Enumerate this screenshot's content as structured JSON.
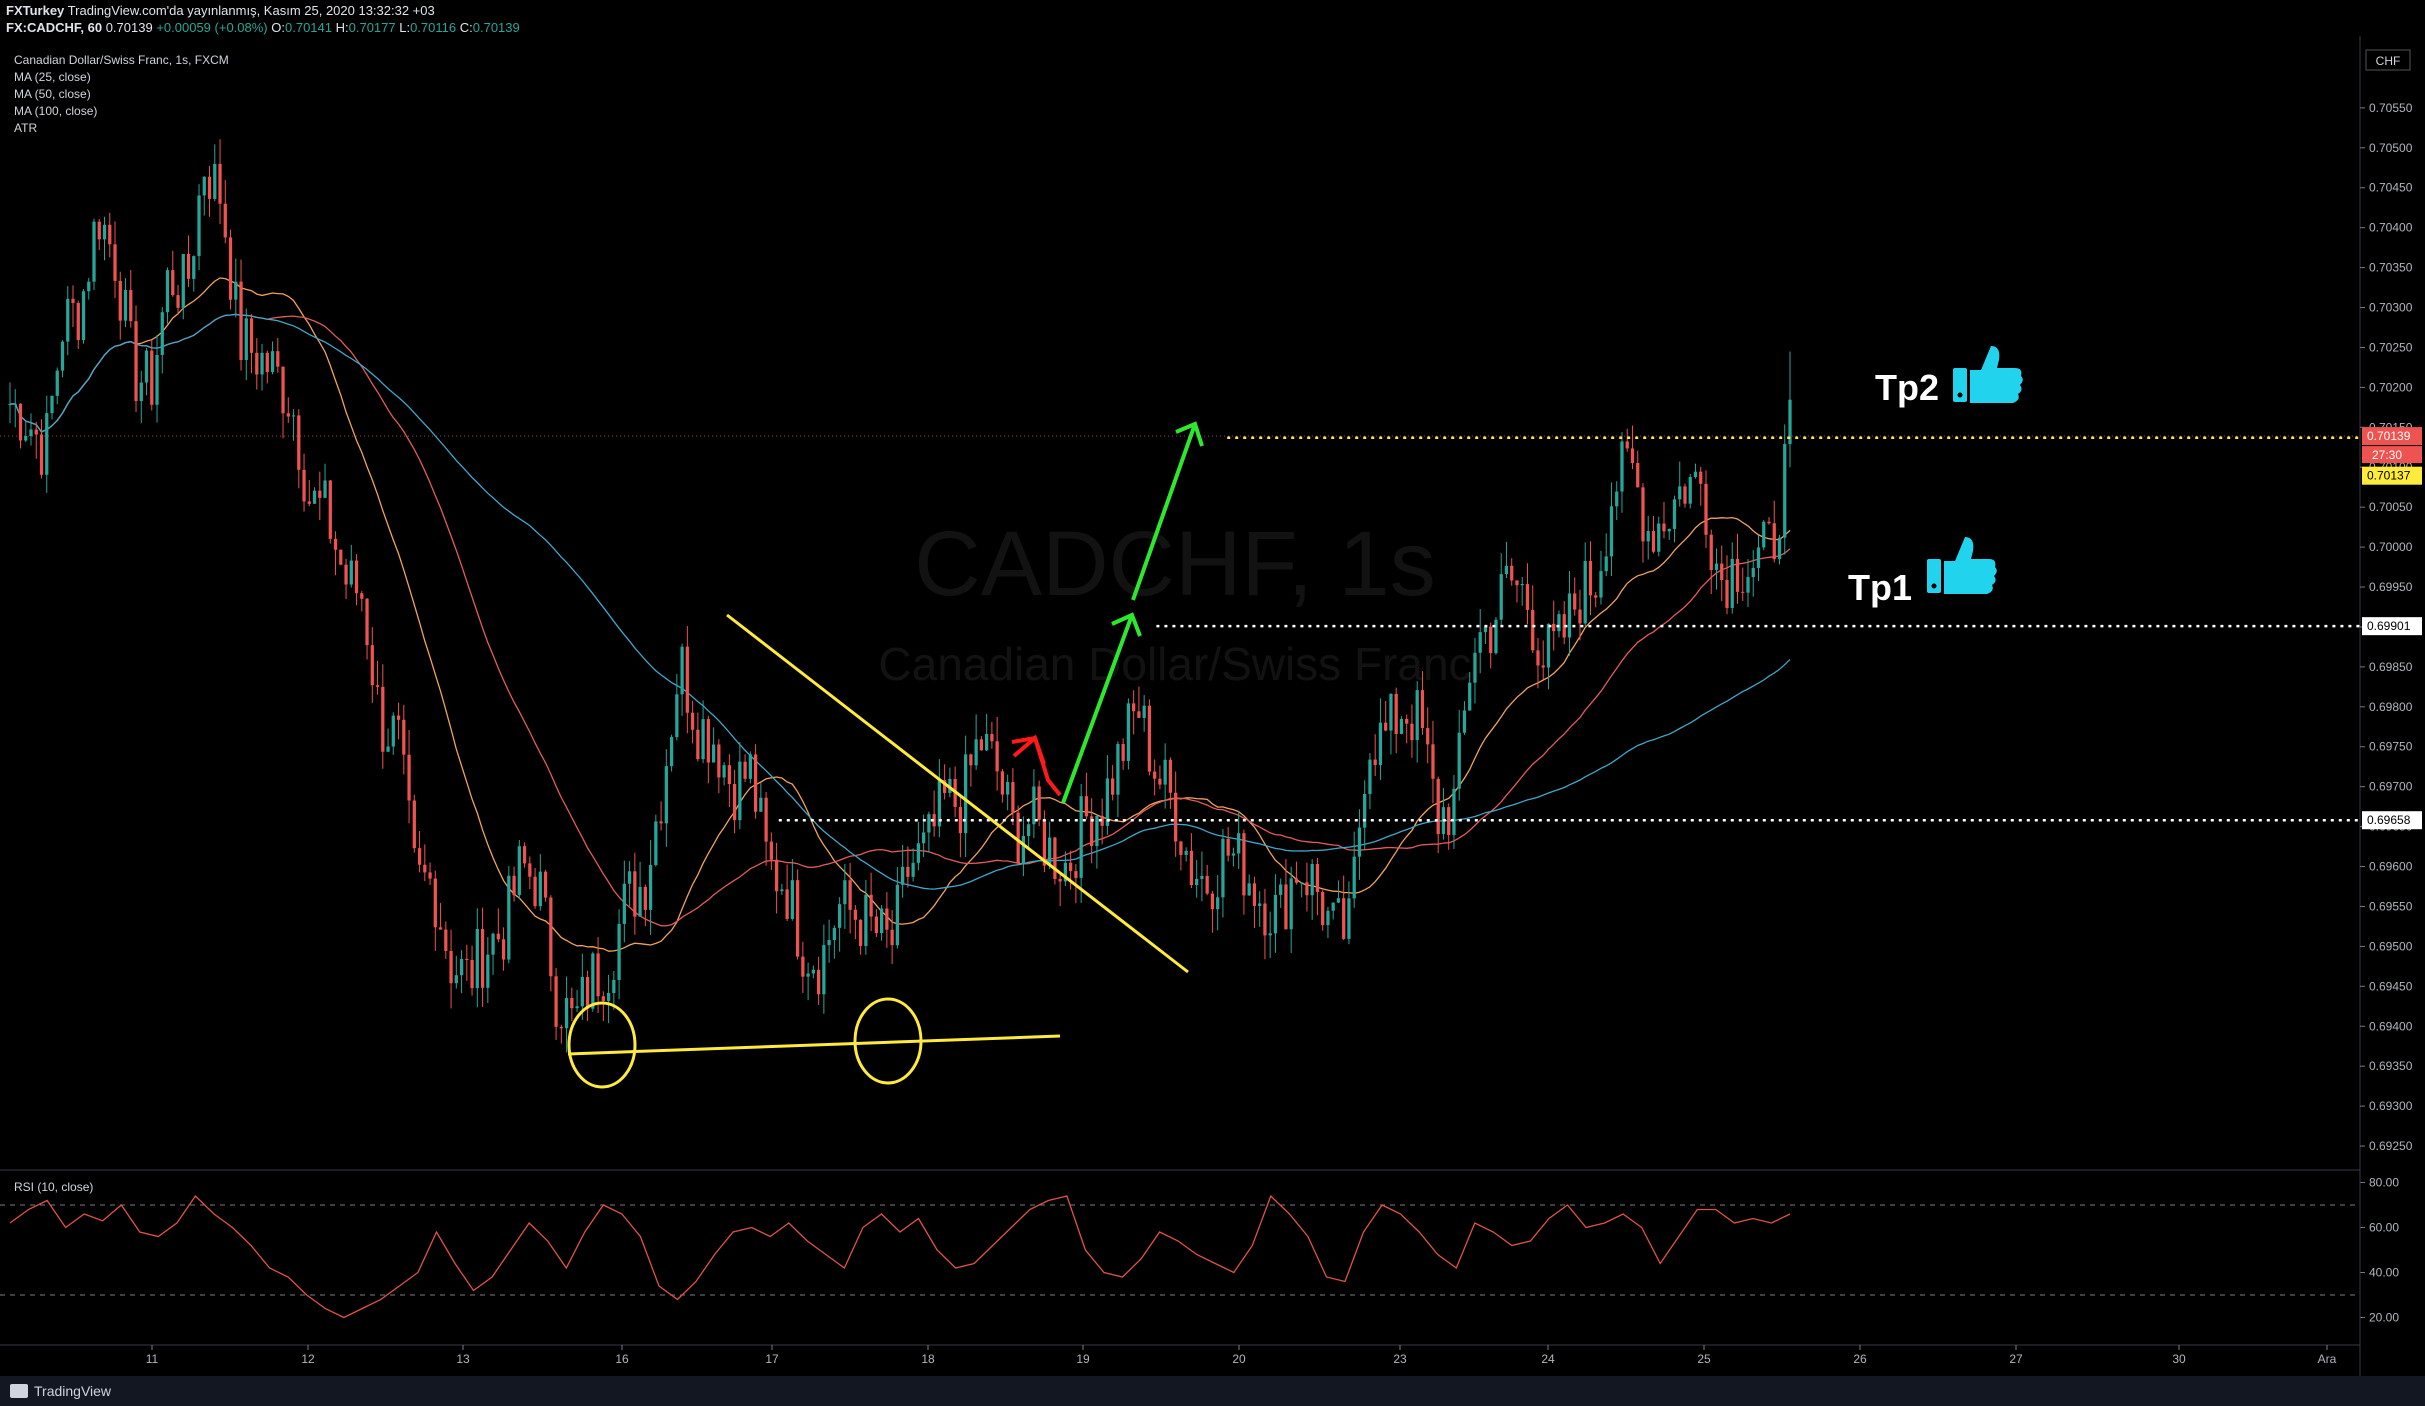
{
  "header": {
    "publisher": "FXTurkey",
    "published_note": "TradingView.com'da yayınlanmış, Kasım 25, 2020 13:32:32 +03",
    "symbol": "FX:CADCHF, 60",
    "last": "0.70139",
    "change": "+0.00059 (+0.08%)",
    "o_label": "O:",
    "o": "0.70141",
    "h_label": "H:",
    "h": "0.70177",
    "l_label": "L:",
    "l": "0.70116",
    "c_label": "C:",
    "c": "0.70139"
  },
  "legend": [
    "Canadian Dollar/Swiss Franc, 1s, FXCM",
    "MA (25, close)",
    "MA (50, close)",
    "MA (100, close)",
    "ATR"
  ],
  "watermark": {
    "symbol": "CADCHF, 1s",
    "name": "Canadian Dollar/Swiss Franc"
  },
  "annotations": {
    "tp1": "Tp1",
    "tp2": "Tp2"
  },
  "axis": {
    "currency": "CHF",
    "countdown": "27:30"
  },
  "rsi_label": "RSI (10, close)",
  "footer": {
    "brand": "TradingView"
  },
  "colors": {
    "bull": "#26a69a",
    "bear": "#ef5350",
    "ma25": "#f0a35a",
    "ma50": "#e35b5b",
    "ma100": "#3fa7c9",
    "drawing": "#ffeb3b",
    "arrow_green": "#2ee82e",
    "arrow_red": "#ff1a1a",
    "rsi": "#e0524a"
  },
  "chart_data": {
    "type": "candlestick",
    "title": "Canadian Dollar/Swiss Franc, 1s, FXCM",
    "x_ticks": [
      "11",
      "12",
      "13",
      "16",
      "17",
      "18",
      "19",
      "20",
      "23",
      "24",
      "25",
      "26",
      "27",
      "30",
      "Ara"
    ],
    "y_ticks": [
      "0.70550",
      "0.70500",
      "0.70450",
      "0.70400",
      "0.70350",
      "0.70300",
      "0.70250",
      "0.70200",
      "0.70150",
      "0.70100",
      "0.70050",
      "0.70000",
      "0.69950",
      "0.69900",
      "0.69850",
      "0.69800",
      "0.69750",
      "0.69700",
      "0.69650",
      "0.69600",
      "0.69550",
      "0.69500",
      "0.69450",
      "0.69400",
      "0.69350",
      "0.69300",
      "0.69250"
    ],
    "ylim": [
      0.6922,
      0.7064
    ],
    "price_labels": [
      {
        "value": 0.70139,
        "text": "0.70139",
        "style": "last"
      },
      {
        "value": 0.70137,
        "text": "0.70137",
        "style": "yellow"
      },
      {
        "value": 0.69901,
        "text": "0.69901",
        "style": "white"
      },
      {
        "value": 0.69658,
        "text": "0.69658",
        "style": "white"
      }
    ],
    "horizontal_levels": [
      {
        "value": 0.70137,
        "color": "#ffeb3b",
        "from": 0.52
      },
      {
        "value": 0.69901,
        "color": "#ffffff",
        "from": 0.49
      },
      {
        "value": 0.69658,
        "color": "#ffffff",
        "from": 0.33
      }
    ],
    "ohlc_waypoints": [
      [
        0.7018,
        0.7016
      ],
      [
        0.7012,
        0.7028
      ],
      [
        0.703,
        0.7042
      ],
      [
        0.7036,
        0.7022
      ],
      [
        0.702,
        0.7034
      ],
      [
        0.7032,
        0.7048
      ],
      [
        0.7044,
        0.7026
      ],
      [
        0.7024,
        0.7022
      ],
      [
        0.7018,
        0.7006
      ],
      [
        0.7004,
        0.6996
      ],
      [
        0.6994,
        0.6978
      ],
      [
        0.6976,
        0.6958
      ],
      [
        0.6958,
        0.6948
      ],
      [
        0.6946,
        0.695
      ],
      [
        0.6952,
        0.696
      ],
      [
        0.6958,
        0.6944
      ],
      [
        0.694,
        0.6946
      ],
      [
        0.6948,
        0.6956
      ],
      [
        0.6958,
        0.697
      ],
      [
        0.6986,
        0.6978
      ],
      [
        0.6976,
        0.697
      ],
      [
        0.6972,
        0.696
      ],
      [
        0.6958,
        0.695
      ],
      [
        0.6948,
        0.6955
      ],
      [
        0.6954,
        0.6952
      ],
      [
        0.695,
        0.696
      ],
      [
        0.6962,
        0.6968
      ],
      [
        0.6968,
        0.6976
      ],
      [
        0.6972,
        0.6964
      ],
      [
        0.6966,
        0.6962
      ],
      [
        0.696,
        0.6966
      ],
      [
        0.6968,
        0.6974
      ],
      [
        0.698,
        0.6972
      ],
      [
        0.6968,
        0.696
      ],
      [
        0.6958,
        0.6962
      ],
      [
        0.696,
        0.6956
      ],
      [
        0.6954,
        0.696
      ],
      [
        0.6958,
        0.6952
      ],
      [
        0.6952,
        0.6976
      ],
      [
        0.6976,
        0.698
      ],
      [
        0.6978,
        0.6966
      ],
      [
        0.6968,
        0.6988
      ],
      [
        0.699,
        0.6996
      ],
      [
        0.6994,
        0.6986
      ],
      [
        0.6988,
        0.6994
      ],
      [
        0.6996,
        0.7008
      ],
      [
        0.701,
        0.7002
      ],
      [
        0.7004,
        0.7008
      ],
      [
        0.7008,
        0.6996
      ],
      [
        0.6998,
        0.6998
      ],
      [
        0.7,
        0.7014
      ]
    ],
    "rsi": {
      "ylim": [
        10,
        82
      ],
      "y_ticks": [
        80,
        60,
        40,
        20
      ],
      "levels": [
        70,
        30
      ],
      "values": [
        62,
        68,
        72,
        60,
        66,
        63,
        70,
        58,
        56,
        62,
        74,
        66,
        60,
        52,
        42,
        38,
        30,
        24,
        20,
        24,
        28,
        34,
        40,
        58,
        44,
        32,
        38,
        50,
        62,
        54,
        42,
        58,
        70,
        66,
        56,
        34,
        28,
        36,
        48,
        58,
        60,
        56,
        62,
        54,
        48,
        42,
        60,
        66,
        58,
        64,
        50,
        42,
        44,
        52,
        60,
        68,
        72,
        74,
        50,
        40,
        38,
        46,
        58,
        54,
        48,
        44,
        40,
        52,
        74,
        66,
        56,
        38,
        36,
        58,
        70,
        66,
        58,
        48,
        42,
        62,
        58,
        52,
        54,
        64,
        70,
        60,
        62,
        66,
        60,
        44,
        56,
        68,
        68,
        62,
        64,
        62,
        66
      ]
    },
    "xlabel": "",
    "ylabel": ""
  }
}
